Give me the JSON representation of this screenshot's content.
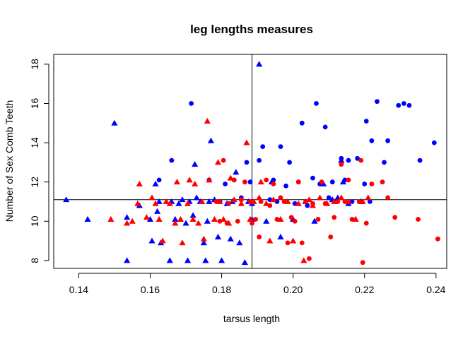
{
  "chart_data": {
    "type": "scatter",
    "title": "leg lengths measures",
    "xlabel": "tarsus length",
    "ylabel": "Number of Sex Comb Teeth",
    "xlim": [
      0.133,
      0.243
    ],
    "ylim": [
      7.6,
      18.5
    ],
    "x_ticks": [
      "0.14",
      "0.16",
      "0.18",
      "0.20",
      "0.22",
      "0.24"
    ],
    "y_ticks": [
      "8",
      "10",
      "12",
      "14",
      "16",
      "18"
    ],
    "grid": false,
    "legend": "none",
    "reference_lines": {
      "vertical_x": 0.1885,
      "horizontal_y": 11.1
    },
    "series": [
      {
        "color": "#0000ff",
        "marker": "triangle",
        "points": [
          [
            0.1365,
            11.1
          ],
          [
            0.1425,
            10.1
          ],
          [
            0.15,
            15.0
          ],
          [
            0.1535,
            10.2
          ],
          [
            0.1535,
            8.0
          ],
          [
            0.157,
            10.8
          ],
          [
            0.16,
            10.1
          ],
          [
            0.1605,
            9.0
          ],
          [
            0.1615,
            11.9
          ],
          [
            0.162,
            10.5
          ],
          [
            0.1625,
            11.0
          ],
          [
            0.163,
            8.9
          ],
          [
            0.1655,
            8.0
          ],
          [
            0.166,
            11.0
          ],
          [
            0.167,
            10.1
          ],
          [
            0.168,
            10.9
          ],
          [
            0.169,
            11.1
          ],
          [
            0.17,
            9.9
          ],
          [
            0.1705,
            8.0
          ],
          [
            0.171,
            11.0
          ],
          [
            0.172,
            10.3
          ],
          [
            0.1725,
            12.9
          ],
          [
            0.173,
            11.2
          ],
          [
            0.174,
            11.0
          ],
          [
            0.175,
            8.9
          ],
          [
            0.1755,
            8.0
          ],
          [
            0.176,
            10.0
          ],
          [
            0.1765,
            11.0
          ],
          [
            0.177,
            14.1
          ],
          [
            0.178,
            11.1
          ],
          [
            0.179,
            9.2
          ],
          [
            0.18,
            8.0
          ],
          [
            0.1815,
            10.9
          ],
          [
            0.1825,
            9.1
          ],
          [
            0.183,
            11.0
          ],
          [
            0.184,
            12.5
          ],
          [
            0.185,
            8.9
          ],
          [
            0.1865,
            7.9
          ],
          [
            0.1875,
            11.0
          ],
          [
            0.1885,
            10.1
          ],
          [
            0.1885,
            10.9
          ],
          [
            0.1905,
            18.0
          ],
          [
            0.1925,
            10.0
          ],
          [
            0.194,
            12.0
          ],
          [
            0.1965,
            9.2
          ],
          [
            0.2,
            10.1
          ],
          [
            0.2035,
            11.0
          ],
          [
            0.206,
            10.0
          ],
          [
            0.2085,
            11.9
          ],
          [
            0.211,
            11.1
          ],
          [
            0.2125,
            11.2
          ],
          [
            0.2135,
            13.1
          ],
          [
            0.214,
            12.0
          ],
          [
            0.2155,
            10.9
          ],
          [
            0.2175,
            10.1
          ],
          [
            0.219,
            11.0
          ]
        ]
      },
      {
        "color": "#0000ff",
        "marker": "circle",
        "points": [
          [
            0.1625,
            12.1
          ],
          [
            0.166,
            13.1
          ],
          [
            0.1715,
            16.0
          ],
          [
            0.1765,
            12.1
          ],
          [
            0.1795,
            11.0
          ],
          [
            0.181,
            11.9
          ],
          [
            0.1835,
            12.1
          ],
          [
            0.1855,
            11.2
          ],
          [
            0.187,
            13.0
          ],
          [
            0.188,
            12.0
          ],
          [
            0.1905,
            13.1
          ],
          [
            0.1915,
            13.8
          ],
          [
            0.1935,
            11.1
          ],
          [
            0.1945,
            12.1
          ],
          [
            0.1955,
            11.0
          ],
          [
            0.1965,
            13.8
          ],
          [
            0.198,
            11.8
          ],
          [
            0.199,
            13.0
          ],
          [
            0.2005,
            10.9
          ],
          [
            0.2015,
            12.0
          ],
          [
            0.2025,
            15.0
          ],
          [
            0.204,
            10.8
          ],
          [
            0.2055,
            12.2
          ],
          [
            0.2065,
            16.0
          ],
          [
            0.2075,
            11.9
          ],
          [
            0.209,
            14.8
          ],
          [
            0.21,
            11.2
          ],
          [
            0.211,
            12.0
          ],
          [
            0.212,
            11.0
          ],
          [
            0.2135,
            13.2
          ],
          [
            0.2145,
            12.1
          ],
          [
            0.2155,
            13.1
          ],
          [
            0.2165,
            11.0
          ],
          [
            0.218,
            13.2
          ],
          [
            0.22,
            11.9
          ],
          [
            0.2205,
            15.1
          ],
          [
            0.2215,
            11.0
          ],
          [
            0.222,
            14.1
          ],
          [
            0.2235,
            16.1
          ],
          [
            0.2255,
            13.0
          ],
          [
            0.2265,
            14.1
          ],
          [
            0.2295,
            15.9
          ],
          [
            0.231,
            16.0
          ],
          [
            0.2325,
            15.9
          ],
          [
            0.2355,
            13.1
          ],
          [
            0.2395,
            14.0
          ]
        ]
      },
      {
        "color": "#ff0000",
        "marker": "triangle",
        "points": [
          [
            0.149,
            10.1
          ],
          [
            0.1535,
            9.9
          ],
          [
            0.155,
            10.0
          ],
          [
            0.1565,
            10.9
          ],
          [
            0.157,
            11.9
          ],
          [
            0.159,
            10.2
          ],
          [
            0.1605,
            11.2
          ],
          [
            0.1615,
            10.9
          ],
          [
            0.1625,
            10.1
          ],
          [
            0.1635,
            9.0
          ],
          [
            0.1645,
            11.0
          ],
          [
            0.1655,
            10.9
          ],
          [
            0.167,
            9.9
          ],
          [
            0.1675,
            12.0
          ],
          [
            0.1685,
            10.1
          ],
          [
            0.169,
            8.9
          ],
          [
            0.1705,
            10.9
          ],
          [
            0.171,
            12.1
          ],
          [
            0.172,
            10.1
          ],
          [
            0.1725,
            11.9
          ],
          [
            0.1735,
            9.9
          ],
          [
            0.1745,
            11.0
          ],
          [
            0.175,
            9.1
          ],
          [
            0.176,
            15.1
          ],
          [
            0.1765,
            12.1
          ],
          [
            0.178,
            10.1
          ],
          [
            0.179,
            13.0
          ],
          [
            0.1795,
            11.0
          ],
          [
            0.1805,
            10.1
          ],
          [
            0.182,
            9.9
          ],
          [
            0.1825,
            12.2
          ],
          [
            0.1835,
            11.1
          ],
          [
            0.1855,
            10.9
          ],
          [
            0.187,
            14.0
          ],
          [
            0.188,
            10.1
          ],
          [
            0.189,
            11.0
          ],
          [
            0.1905,
            11.2
          ],
          [
            0.191,
            12.0
          ],
          [
            0.1925,
            10.9
          ],
          [
            0.1935,
            9.0
          ],
          [
            0.1945,
            11.1
          ],
          [
            0.1965,
            10.1
          ],
          [
            0.1985,
            11.0
          ],
          [
            0.2,
            9.0
          ],
          [
            0.2015,
            10.9
          ],
          [
            0.203,
            8.0
          ],
          [
            0.2045,
            11.1
          ],
          [
            0.2055,
            10.8
          ],
          [
            0.2075,
            11.2
          ],
          [
            0.2095,
            10.9
          ],
          [
            0.2115,
            11.0
          ],
          [
            0.2135,
            11.2
          ],
          [
            0.2155,
            11.0
          ],
          [
            0.2175,
            10.1
          ],
          [
            0.2195,
            11.0
          ],
          [
            0.221,
            11.2
          ]
        ]
      },
      {
        "color": "#ff0000",
        "marker": "circle",
        "points": [
          [
            0.1785,
            11.0
          ],
          [
            0.1795,
            10.0
          ],
          [
            0.1805,
            13.1
          ],
          [
            0.1815,
            9.9
          ],
          [
            0.182,
            10.9
          ],
          [
            0.1835,
            12.1
          ],
          [
            0.1845,
            10.0
          ],
          [
            0.1855,
            11.1
          ],
          [
            0.1865,
            12.0
          ],
          [
            0.188,
            11.0
          ],
          [
            0.1885,
            9.9
          ],
          [
            0.1895,
            10.1
          ],
          [
            0.1905,
            9.2
          ],
          [
            0.191,
            11.0
          ],
          [
            0.1925,
            12.1
          ],
          [
            0.1935,
            10.8
          ],
          [
            0.1945,
            11.9
          ],
          [
            0.1955,
            10.1
          ],
          [
            0.1965,
            11.2
          ],
          [
            0.1975,
            11.0
          ],
          [
            0.1985,
            8.9
          ],
          [
            0.1995,
            10.2
          ],
          [
            0.2005,
            10.0
          ],
          [
            0.2015,
            12.0
          ],
          [
            0.2025,
            8.9
          ],
          [
            0.2035,
            11.0
          ],
          [
            0.2045,
            8.1
          ],
          [
            0.2055,
            10.9
          ],
          [
            0.207,
            10.1
          ],
          [
            0.208,
            12.0
          ],
          [
            0.209,
            10.9
          ],
          [
            0.2105,
            9.2
          ],
          [
            0.2115,
            10.2
          ],
          [
            0.2125,
            11.0
          ],
          [
            0.2135,
            12.9
          ],
          [
            0.2145,
            11.0
          ],
          [
            0.2155,
            12.1
          ],
          [
            0.2165,
            10.1
          ],
          [
            0.2185,
            11.0
          ],
          [
            0.219,
            13.1
          ],
          [
            0.2195,
            7.9
          ],
          [
            0.2205,
            9.9
          ],
          [
            0.222,
            11.9
          ],
          [
            0.225,
            12.0
          ],
          [
            0.2265,
            11.2
          ],
          [
            0.2285,
            10.2
          ],
          [
            0.235,
            10.1
          ],
          [
            0.2405,
            9.1
          ]
        ]
      }
    ]
  }
}
